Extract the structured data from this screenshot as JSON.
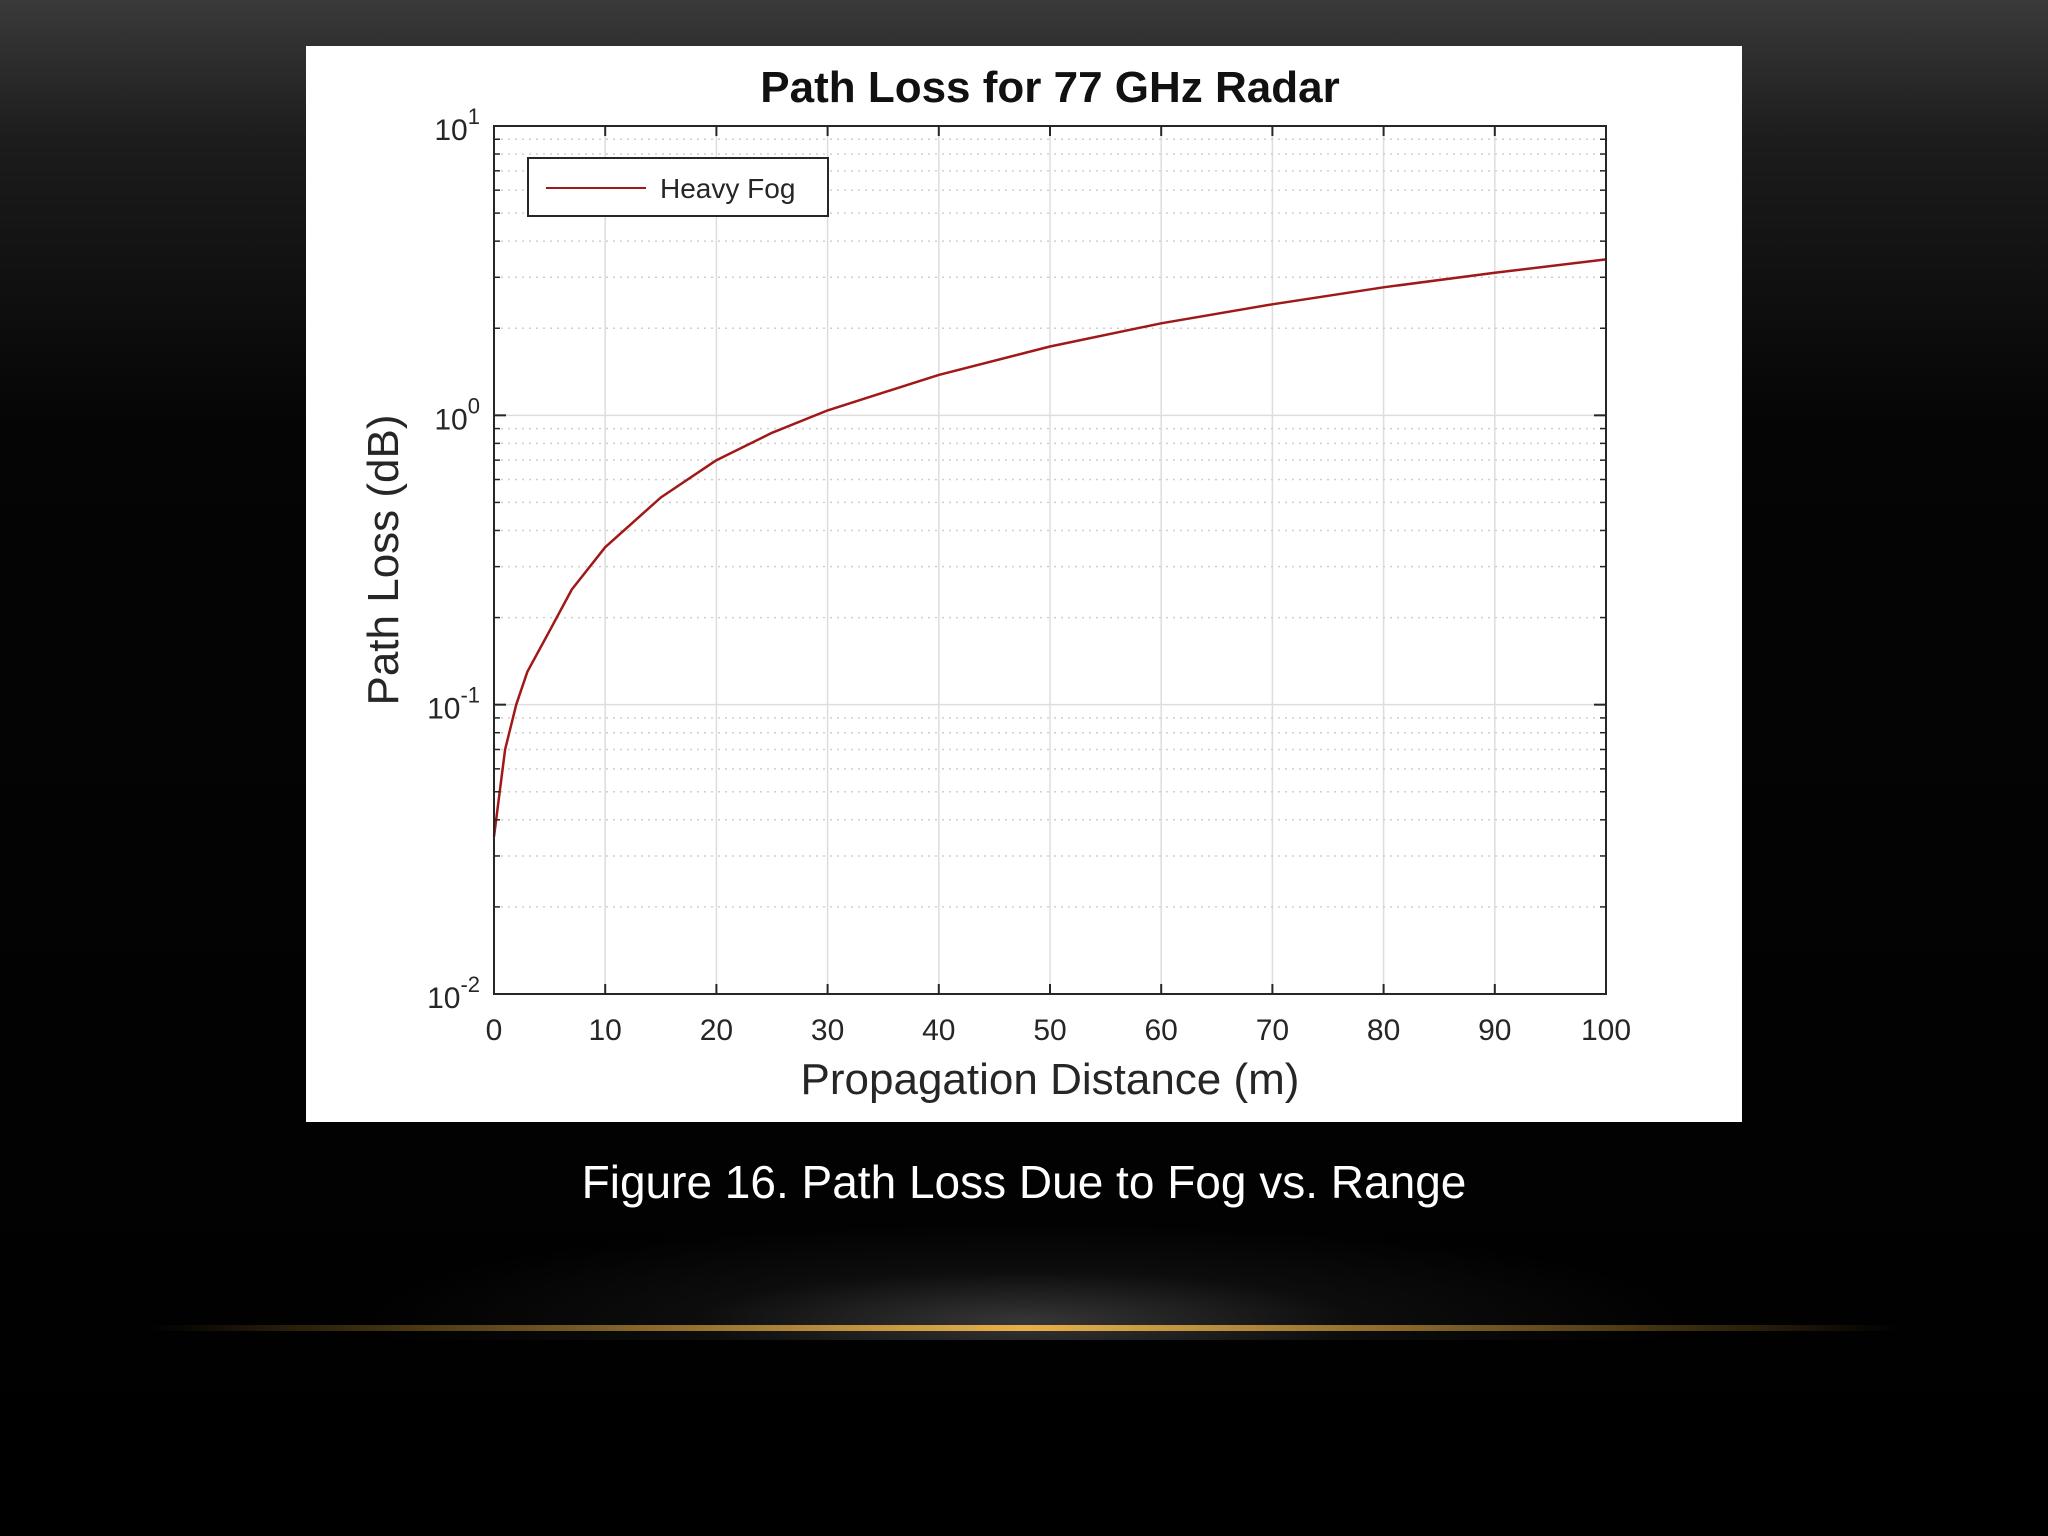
{
  "slide": {
    "caption": "Figure 16. Path Loss Due to Fog vs. Range",
    "accent_color": "#e8b04a",
    "background_color": "#000000"
  },
  "chart_data": {
    "type": "line",
    "title": "Path Loss for 77 GHz Radar",
    "xlabel": "Propagation Distance (m)",
    "ylabel": "Path Loss (dB)",
    "xlim": [
      0,
      100
    ],
    "ylim": [
      0.01,
      10
    ],
    "yscale": "log",
    "grid": true,
    "legend_position": "top-left",
    "x_ticks": [
      "0",
      "10",
      "20",
      "30",
      "40",
      "50",
      "60",
      "70",
      "80",
      "90",
      "100"
    ],
    "y_ticks": [
      {
        "base": "10",
        "exp": "-2"
      },
      {
        "base": "10",
        "exp": "-1"
      },
      {
        "base": "10",
        "exp": "0"
      },
      {
        "base": "10",
        "exp": "1"
      }
    ],
    "series": [
      {
        "name": "Heavy Fog",
        "color": "#a01818",
        "x": [
          0,
          1,
          2,
          3,
          5,
          7,
          10,
          15,
          20,
          25,
          30,
          40,
          50,
          60,
          70,
          80,
          90,
          100
        ],
        "y": [
          0.035,
          0.07,
          0.1,
          0.13,
          0.18,
          0.25,
          0.35,
          0.52,
          0.7,
          0.87,
          1.04,
          1.38,
          1.73,
          2.08,
          2.42,
          2.77,
          3.11,
          3.46
        ]
      }
    ]
  }
}
